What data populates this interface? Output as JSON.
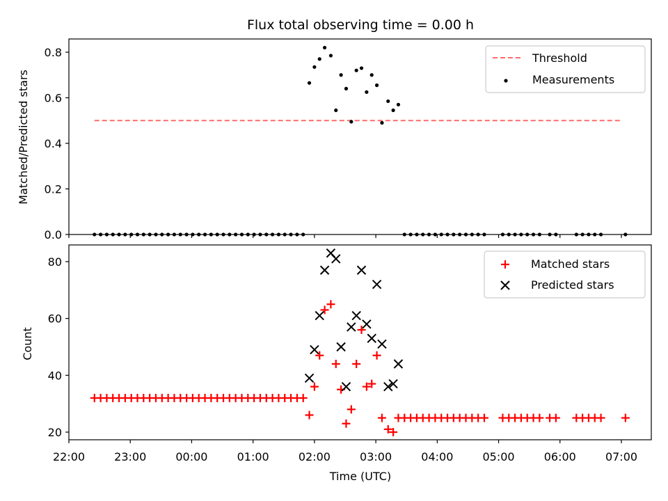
{
  "chart_data": [
    {
      "type": "scatter",
      "title": "Flux total observing time = 0.00 h",
      "ylabel": "Matched/Predicted stars",
      "xlabel": "",
      "xlim": [
        "2000-01-01T22:00",
        "2000-01-02T07:30"
      ],
      "ylim": [
        0,
        0.86
      ],
      "yticks": [
        0.0,
        0.2,
        0.4,
        0.6,
        0.8
      ],
      "ytick_labels": [
        "0.0",
        "0.2",
        "0.4",
        "0.6",
        "0.8"
      ],
      "legend_position": "upper right",
      "threshold": {
        "name": "Threshold",
        "value": 0.5,
        "x_range": [
          "2000-01-01T22:25",
          "2000-01-02T06:59"
        ],
        "color": "#ff6b6b",
        "style": "dashed"
      },
      "series": [
        {
          "name": "Measurements",
          "color": "#000000",
          "marker": "dot",
          "points": [
            [
              "2000-01-01T22:25",
              0
            ],
            [
              "2000-01-01T22:31",
              0
            ],
            [
              "2000-01-01T22:37",
              0
            ],
            [
              "2000-01-01T22:43",
              0
            ],
            [
              "2000-01-01T22:49",
              0
            ],
            [
              "2000-01-01T22:55",
              0
            ],
            [
              "2000-01-01T23:01",
              0
            ],
            [
              "2000-01-01T23:07",
              0
            ],
            [
              "2000-01-01T23:13",
              0
            ],
            [
              "2000-01-01T23:19",
              0
            ],
            [
              "2000-01-01T23:25",
              0
            ],
            [
              "2000-01-01T23:31",
              0
            ],
            [
              "2000-01-01T23:37",
              0
            ],
            [
              "2000-01-01T23:43",
              0
            ],
            [
              "2000-01-01T23:49",
              0
            ],
            [
              "2000-01-01T23:55",
              0
            ],
            [
              "2000-01-02T00:01",
              0
            ],
            [
              "2000-01-02T00:07",
              0
            ],
            [
              "2000-01-02T00:13",
              0
            ],
            [
              "2000-01-02T00:19",
              0
            ],
            [
              "2000-01-02T00:25",
              0
            ],
            [
              "2000-01-02T00:31",
              0
            ],
            [
              "2000-01-02T00:37",
              0
            ],
            [
              "2000-01-02T00:43",
              0
            ],
            [
              "2000-01-02T00:49",
              0
            ],
            [
              "2000-01-02T00:55",
              0
            ],
            [
              "2000-01-02T01:01",
              0
            ],
            [
              "2000-01-02T01:07",
              0
            ],
            [
              "2000-01-02T01:13",
              0
            ],
            [
              "2000-01-02T01:19",
              0
            ],
            [
              "2000-01-02T01:25",
              0
            ],
            [
              "2000-01-02T01:31",
              0
            ],
            [
              "2000-01-02T01:37",
              0
            ],
            [
              "2000-01-02T01:43",
              0
            ],
            [
              "2000-01-02T01:49",
              0
            ],
            [
              "2000-01-02T01:55",
              0.665
            ],
            [
              "2000-01-02T02:00",
              0.735
            ],
            [
              "2000-01-02T02:05",
              0.77
            ],
            [
              "2000-01-02T02:10",
              0.82
            ],
            [
              "2000-01-02T02:16",
              0.785
            ],
            [
              "2000-01-02T02:21",
              0.545
            ],
            [
              "2000-01-02T02:26",
              0.7
            ],
            [
              "2000-01-02T02:31",
              0.64
            ],
            [
              "2000-01-02T02:36",
              0.495
            ],
            [
              "2000-01-02T02:41",
              0.72
            ],
            [
              "2000-01-02T02:46",
              0.73
            ],
            [
              "2000-01-02T02:51",
              0.625
            ],
            [
              "2000-01-02T02:56",
              0.7
            ],
            [
              "2000-01-02T03:01",
              0.655
            ],
            [
              "2000-01-02T03:06",
              0.49
            ],
            [
              "2000-01-02T03:12",
              0.585
            ],
            [
              "2000-01-02T03:17",
              0.545
            ],
            [
              "2000-01-02T03:22",
              0.57
            ],
            [
              "2000-01-02T03:28",
              0
            ],
            [
              "2000-01-02T03:34",
              0
            ],
            [
              "2000-01-02T03:40",
              0
            ],
            [
              "2000-01-02T03:46",
              0
            ],
            [
              "2000-01-02T03:52",
              0
            ],
            [
              "2000-01-02T03:58",
              0
            ],
            [
              "2000-01-02T04:04",
              0
            ],
            [
              "2000-01-02T04:10",
              0
            ],
            [
              "2000-01-02T04:16",
              0
            ],
            [
              "2000-01-02T04:22",
              0
            ],
            [
              "2000-01-02T04:28",
              0
            ],
            [
              "2000-01-02T04:34",
              0
            ],
            [
              "2000-01-02T04:40",
              0
            ],
            [
              "2000-01-02T04:46",
              0
            ],
            [
              "2000-01-02T05:04",
              0
            ],
            [
              "2000-01-02T05:10",
              0
            ],
            [
              "2000-01-02T05:16",
              0
            ],
            [
              "2000-01-02T05:22",
              0
            ],
            [
              "2000-01-02T05:28",
              0
            ],
            [
              "2000-01-02T05:34",
              0
            ],
            [
              "2000-01-02T05:40",
              0
            ],
            [
              "2000-01-02T05:50",
              0
            ],
            [
              "2000-01-02T05:56",
              0
            ],
            [
              "2000-01-02T06:16",
              0
            ],
            [
              "2000-01-02T06:22",
              0
            ],
            [
              "2000-01-02T06:28",
              0
            ],
            [
              "2000-01-02T06:34",
              0
            ],
            [
              "2000-01-02T06:40",
              0
            ],
            [
              "2000-01-02T07:04",
              0
            ]
          ]
        }
      ]
    },
    {
      "type": "scatter",
      "title": "",
      "ylabel": "Count",
      "xlabel": "Time (UTC)",
      "xlim": [
        "2000-01-01T22:00",
        "2000-01-02T07:30"
      ],
      "ylim": [
        17,
        86
      ],
      "yticks": [
        20,
        40,
        60,
        80
      ],
      "ytick_labels": [
        "20",
        "40",
        "60",
        "80"
      ],
      "xticks": [
        "2000-01-01T22:00",
        "2000-01-01T23:00",
        "2000-01-02T00:00",
        "2000-01-02T01:00",
        "2000-01-02T02:00",
        "2000-01-02T03:00",
        "2000-01-02T04:00",
        "2000-01-02T05:00",
        "2000-01-02T06:00",
        "2000-01-02T07:00"
      ],
      "xtick_labels": [
        "22:00",
        "23:00",
        "00:00",
        "01:00",
        "02:00",
        "03:00",
        "04:00",
        "05:00",
        "06:00",
        "07:00"
      ],
      "legend_position": "upper right",
      "series": [
        {
          "name": "Matched stars",
          "color": "#ff0000",
          "marker": "plus",
          "points": [
            [
              "2000-01-01T22:25",
              32
            ],
            [
              "2000-01-01T22:31",
              32
            ],
            [
              "2000-01-01T22:37",
              32
            ],
            [
              "2000-01-01T22:43",
              32
            ],
            [
              "2000-01-01T22:49",
              32
            ],
            [
              "2000-01-01T22:55",
              32
            ],
            [
              "2000-01-01T23:01",
              32
            ],
            [
              "2000-01-01T23:07",
              32
            ],
            [
              "2000-01-01T23:13",
              32
            ],
            [
              "2000-01-01T23:19",
              32
            ],
            [
              "2000-01-01T23:25",
              32
            ],
            [
              "2000-01-01T23:31",
              32
            ],
            [
              "2000-01-01T23:37",
              32
            ],
            [
              "2000-01-01T23:43",
              32
            ],
            [
              "2000-01-01T23:49",
              32
            ],
            [
              "2000-01-01T23:55",
              32
            ],
            [
              "2000-01-02T00:01",
              32
            ],
            [
              "2000-01-02T00:07",
              32
            ],
            [
              "2000-01-02T00:13",
              32
            ],
            [
              "2000-01-02T00:19",
              32
            ],
            [
              "2000-01-02T00:25",
              32
            ],
            [
              "2000-01-02T00:31",
              32
            ],
            [
              "2000-01-02T00:37",
              32
            ],
            [
              "2000-01-02T00:43",
              32
            ],
            [
              "2000-01-02T00:49",
              32
            ],
            [
              "2000-01-02T00:55",
              32
            ],
            [
              "2000-01-02T01:01",
              32
            ],
            [
              "2000-01-02T01:07",
              32
            ],
            [
              "2000-01-02T01:13",
              32
            ],
            [
              "2000-01-02T01:19",
              32
            ],
            [
              "2000-01-02T01:25",
              32
            ],
            [
              "2000-01-02T01:31",
              32
            ],
            [
              "2000-01-02T01:37",
              32
            ],
            [
              "2000-01-02T01:43",
              32
            ],
            [
              "2000-01-02T01:49",
              32
            ],
            [
              "2000-01-02T01:55",
              26
            ],
            [
              "2000-01-02T02:00",
              36
            ],
            [
              "2000-01-02T02:05",
              47
            ],
            [
              "2000-01-02T02:10",
              63
            ],
            [
              "2000-01-02T02:16",
              65
            ],
            [
              "2000-01-02T02:21",
              44
            ],
            [
              "2000-01-02T02:26",
              35
            ],
            [
              "2000-01-02T02:31",
              23
            ],
            [
              "2000-01-02T02:36",
              28
            ],
            [
              "2000-01-02T02:41",
              44
            ],
            [
              "2000-01-02T02:46",
              56
            ],
            [
              "2000-01-02T02:51",
              36
            ],
            [
              "2000-01-02T02:56",
              37
            ],
            [
              "2000-01-02T03:01",
              47
            ],
            [
              "2000-01-02T03:06",
              25
            ],
            [
              "2000-01-02T03:12",
              21
            ],
            [
              "2000-01-02T03:17",
              20
            ],
            [
              "2000-01-02T03:22",
              25
            ],
            [
              "2000-01-02T03:28",
              25
            ],
            [
              "2000-01-02T03:34",
              25
            ],
            [
              "2000-01-02T03:40",
              25
            ],
            [
              "2000-01-02T03:46",
              25
            ],
            [
              "2000-01-02T03:52",
              25
            ],
            [
              "2000-01-02T03:58",
              25
            ],
            [
              "2000-01-02T04:04",
              25
            ],
            [
              "2000-01-02T04:10",
              25
            ],
            [
              "2000-01-02T04:16",
              25
            ],
            [
              "2000-01-02T04:22",
              25
            ],
            [
              "2000-01-02T04:28",
              25
            ],
            [
              "2000-01-02T04:34",
              25
            ],
            [
              "2000-01-02T04:40",
              25
            ],
            [
              "2000-01-02T04:46",
              25
            ],
            [
              "2000-01-02T05:04",
              25
            ],
            [
              "2000-01-02T05:10",
              25
            ],
            [
              "2000-01-02T05:16",
              25
            ],
            [
              "2000-01-02T05:22",
              25
            ],
            [
              "2000-01-02T05:28",
              25
            ],
            [
              "2000-01-02T05:34",
              25
            ],
            [
              "2000-01-02T05:40",
              25
            ],
            [
              "2000-01-02T05:50",
              25
            ],
            [
              "2000-01-02T05:56",
              25
            ],
            [
              "2000-01-02T06:16",
              25
            ],
            [
              "2000-01-02T06:22",
              25
            ],
            [
              "2000-01-02T06:28",
              25
            ],
            [
              "2000-01-02T06:34",
              25
            ],
            [
              "2000-01-02T06:40",
              25
            ],
            [
              "2000-01-02T07:04",
              25
            ]
          ]
        },
        {
          "name": "Predicted stars",
          "color": "#000000",
          "marker": "x",
          "points": [
            [
              "2000-01-02T01:55",
              39
            ],
            [
              "2000-01-02T02:00",
              49
            ],
            [
              "2000-01-02T02:05",
              61
            ],
            [
              "2000-01-02T02:10",
              77
            ],
            [
              "2000-01-02T02:16",
              83
            ],
            [
              "2000-01-02T02:21",
              81
            ],
            [
              "2000-01-02T02:26",
              50
            ],
            [
              "2000-01-02T02:31",
              36
            ],
            [
              "2000-01-02T02:36",
              57
            ],
            [
              "2000-01-02T02:41",
              61
            ],
            [
              "2000-01-02T02:46",
              77
            ],
            [
              "2000-01-02T02:51",
              58
            ],
            [
              "2000-01-02T02:56",
              53
            ],
            [
              "2000-01-02T03:01",
              72
            ],
            [
              "2000-01-02T03:06",
              51
            ],
            [
              "2000-01-02T03:12",
              36
            ],
            [
              "2000-01-02T03:17",
              37
            ],
            [
              "2000-01-02T03:22",
              44
            ]
          ]
        }
      ]
    }
  ]
}
